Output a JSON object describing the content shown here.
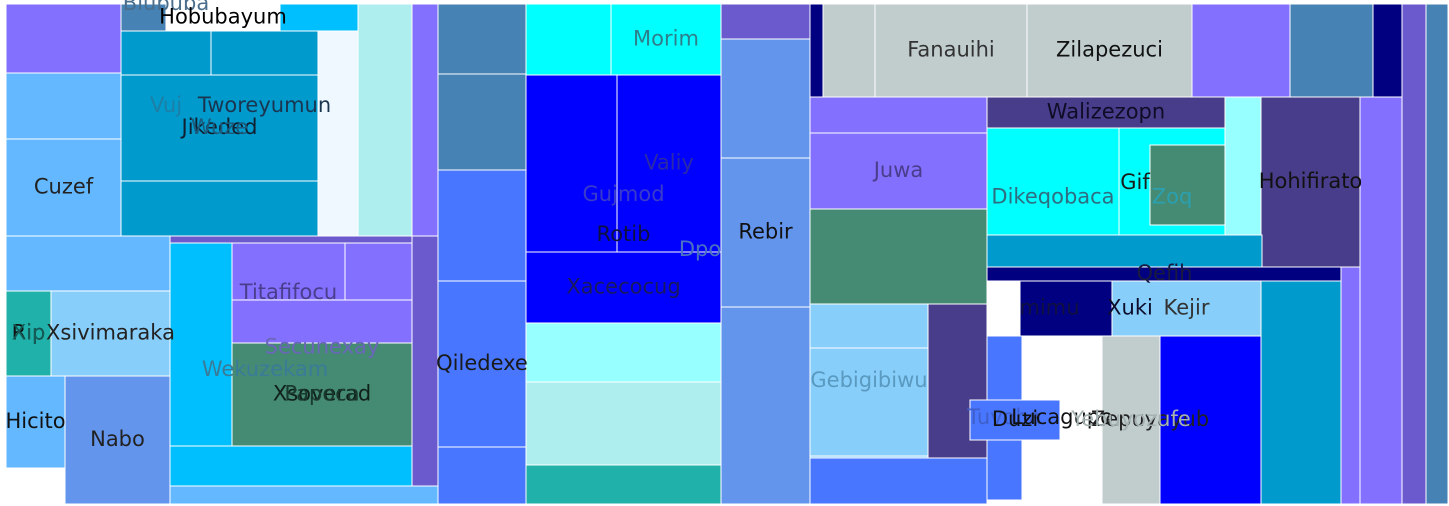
{
  "chart_data": {
    "type": "treemap",
    "title": "",
    "cells": [
      {
        "color": "#8470ff"
      },
      {
        "color": "#4682b4"
      },
      {
        "label": "Blububa",
        "color": "#4682b4",
        "text_color": "#4a6e8c"
      },
      {
        "label": "Hobubayum",
        "color": "#ffffff",
        "text_color": "#000000"
      },
      {
        "color": "#00bfff"
      },
      {
        "color": "#f0f8ff"
      },
      {
        "color": "#afeeee"
      },
      {
        "color": "#8470ff"
      },
      {
        "color": "#63b8ff"
      },
      {
        "label": "Cuzef",
        "color": "#63b8ff",
        "text_color": "#222222"
      },
      {
        "color": "#009acd"
      },
      {
        "label": "Vuj",
        "color": "#009acd",
        "text_color": "#1d7fa6"
      },
      {
        "label": "Tworeyumun",
        "color": "#009acd",
        "text_color": "#1a3550"
      },
      {
        "label": "Jikeded",
        "color": "#009acd",
        "text_color": "#102030"
      },
      {
        "label": "Wuze",
        "color": "#009acd",
        "text_color": "#1b5c7e"
      },
      {
        "color": "#009acd"
      },
      {
        "color": "#63b8ff"
      },
      {
        "label": "Xsivimaraka",
        "color": "#87cefa",
        "text_color": "#222222"
      },
      {
        "color": "#20b2aa"
      },
      {
        "label": "Rip",
        "color": "#20b2aa",
        "text_color": "#111111"
      },
      {
        "label": "Xip",
        "color": "#20b2aa",
        "text_color": "#145c58"
      },
      {
        "label": "Hicito",
        "color": "#63b8ff",
        "text_color": "#111111"
      },
      {
        "label": "Nabo",
        "color": "#6495ed",
        "text_color": "#222222"
      },
      {
        "color": "#6a5acd"
      },
      {
        "color": "#00bfff"
      },
      {
        "label": "Wekuzekam",
        "color": "#00bfff",
        "text_color": "#3a7c98"
      },
      {
        "label": "Titafifocu",
        "color": "#8470ff",
        "text_color": "#4a3d8c"
      },
      {
        "color": "#8470ff"
      },
      {
        "label": "Secunexay",
        "color": "#8470ff",
        "text_color": "#6a66b8"
      },
      {
        "label": "Xsoverad",
        "color": "#458b74",
        "text_color": "#102018"
      },
      {
        "label": "Papoca",
        "color": "#458b74",
        "text_color": "#1a3a2e"
      },
      {
        "color": "#00bfff"
      },
      {
        "color": "#63b8ff"
      },
      {
        "color": "#6a5acd"
      },
      {
        "color": "#4682b4"
      },
      {
        "color": "#4682b4"
      },
      {
        "color": "#4876ff"
      },
      {
        "label": "Qiledexe",
        "color": "#4876ff",
        "text_color": "#1a1a1a"
      },
      {
        "color": "#4876ff"
      },
      {
        "color": "#00ffff"
      },
      {
        "label": "Morim",
        "color": "#00ffff",
        "text_color": "#2e7f8a"
      },
      {
        "color": "#0000ff"
      },
      {
        "label": "Gujmod",
        "color": "#0000ff",
        "text_color": "#3a3acb"
      },
      {
        "label": "Valiy",
        "color": "#0000ff",
        "text_color": "#2a2aa8"
      },
      {
        "label": "Rotib",
        "color": "#0000ff",
        "text_color": "#101040"
      },
      {
        "label": "Xacecocug",
        "color": "#0000ff",
        "text_color": "#1a1a5e"
      },
      {
        "label": "Dpo",
        "color": "#6495ed",
        "text_color": "#4a72c0"
      },
      {
        "color": "#97ffff"
      },
      {
        "color": "#afeeee"
      },
      {
        "color": "#20b2aa"
      },
      {
        "color": "#6a5acd"
      },
      {
        "color": "#6495ed"
      },
      {
        "label": "Rebir",
        "color": "#6495ed",
        "text_color": "#111111"
      },
      {
        "color": "#6495ed"
      },
      {
        "color": "#000080"
      },
      {
        "color": "#c1cdcd"
      },
      {
        "label": "Fanauihi",
        "color": "#c1cdcd",
        "text_color": "#333333"
      },
      {
        "label": "Zilapezuci",
        "color": "#c1cdcd",
        "text_color": "#111111"
      },
      {
        "color": "#8470ff"
      },
      {
        "color": "#4682b4"
      },
      {
        "color": "#000080"
      },
      {
        "color": "#6a5acd"
      },
      {
        "color": "#4682b4"
      },
      {
        "color": "#8470ff"
      },
      {
        "color": "#8470ff"
      },
      {
        "label": "Juwa",
        "color": "#8470ff",
        "text_color": "#4a3d8c"
      },
      {
        "color": "#458b74"
      },
      {
        "label": "Walizezopn",
        "color": "#483d8b",
        "text_color": "#0d0d26"
      },
      {
        "label": "Dikeqobaca",
        "color": "#00ffff",
        "text_color": "#2e6e80"
      },
      {
        "label": "Gif",
        "color": "#00ffff",
        "text_color": "#1a1a1a"
      },
      {
        "label": "Zoq",
        "color": "#00ffff",
        "text_color": "#2aa0b0"
      },
      {
        "color": "#458b74"
      },
      {
        "color": "#97ffff"
      },
      {
        "label": "Hohifirato",
        "color": "#483d8b",
        "text_color": "#111111"
      },
      {
        "color": "#009acd"
      },
      {
        "label": "Qefih",
        "color": "#000080",
        "text_color": "#1a1a40"
      },
      {
        "label": "mimu",
        "color": "#000080",
        "text_color": "#101040"
      },
      {
        "label": "Xuki",
        "color": "#000080",
        "text_color": "#0d0d2a"
      },
      {
        "label": "Kejir",
        "color": "#87cefa",
        "text_color": "#333333"
      },
      {
        "label": "Gebigibiwu",
        "color": "#87cefa",
        "text_color": "#5a9ac0"
      },
      {
        "color": "#87cefa"
      },
      {
        "color": "#483d8b"
      },
      {
        "color": "#4876ff"
      },
      {
        "label": "Tuvoba",
        "color": "#4876ff",
        "text_color": "#3f5fcb"
      },
      {
        "label": "Duzi",
        "color": "#4876ff",
        "text_color": "#111111"
      },
      {
        "label": "Lucagupo",
        "color": "#4876ff",
        "text_color": "#111111"
      },
      {
        "label": "Zepuyayub",
        "color": "#8470ff",
        "text_color": "#222222"
      },
      {
        "label": "Yebuyozufe",
        "color": "#c1cdcd",
        "text_color": "#a6b2b2"
      },
      {
        "color": "#0000ff"
      },
      {
        "color": "#009acd"
      },
      {
        "color": "#8470ff"
      },
      {
        "color": "#6a5acd"
      },
      {
        "color": "#4682b4"
      }
    ]
  }
}
